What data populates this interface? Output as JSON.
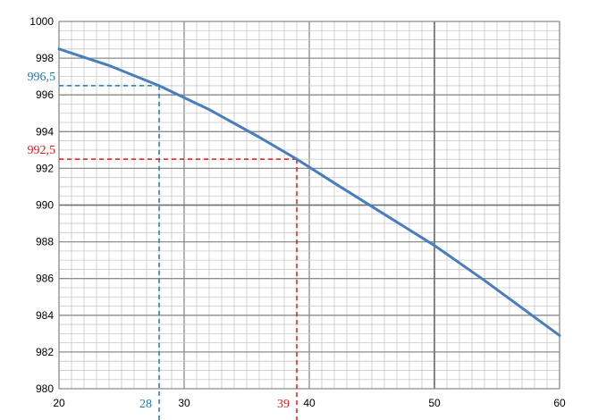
{
  "chart_data": {
    "type": "line",
    "title": "",
    "xlabel": "",
    "ylabel": "",
    "xlim": [
      20,
      60
    ],
    "ylim": [
      980,
      1000
    ],
    "grid": "major and minor",
    "x_ticks": [
      20,
      30,
      40,
      50,
      60
    ],
    "y_ticks": [
      980,
      982,
      984,
      986,
      988,
      990,
      992,
      994,
      996,
      998,
      1000
    ],
    "series": [
      {
        "name": "curve",
        "color": "#4a7ebb",
        "x": [
          20,
          24,
          28,
          32,
          36,
          39,
          42,
          46,
          50,
          54,
          58,
          60
        ],
        "y": [
          998.5,
          997.6,
          996.5,
          995.2,
          993.7,
          992.5,
          991.2,
          989.5,
          987.8,
          985.9,
          983.9,
          982.9
        ]
      }
    ],
    "annotations": [
      {
        "x": 28,
        "y": 996.5,
        "x_label": "28",
        "y_label": "996,5",
        "color": "#1f77b4"
      },
      {
        "x": 39,
        "y": 992.5,
        "x_label": "39",
        "y_label": "992,5",
        "color": "#e0161b"
      }
    ]
  }
}
